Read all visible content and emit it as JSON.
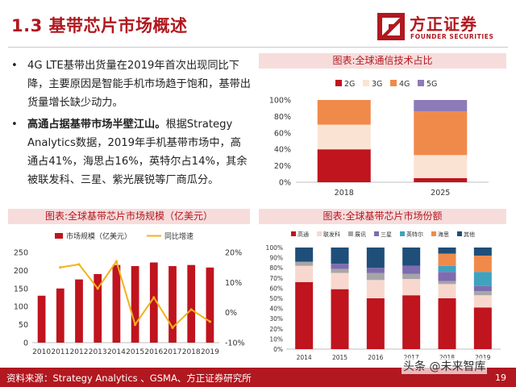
{
  "header": {
    "title": "1.3 基带芯片市场概述",
    "logo_cn": "方正证券",
    "logo_en": "FOUNDER SECURITIES",
    "colors": {
      "brand": "#b1181f",
      "panel_bg": "#f7dcdc"
    }
  },
  "bullets": [
    {
      "marker": "•",
      "text": "4G LTE基带出货量在2019年首次出现同比下降，主要原因是智能手机市场趋于饱和，基带出货量增长缺少动力。"
    },
    {
      "marker": "•",
      "highlight": "高通占据基带市场半壁江山。",
      "text": "根据Strategy Analytics数据，2019年手机基带市场中，高通占41%，海思占16%，英特尔占14%，其余被联发科、三星、紫光展锐等厂商瓜分。"
    }
  ],
  "panels": {
    "tech_share": "图表:全球通信技术占比",
    "market_size": "图表:全球基带芯片市场规模（亿美元）",
    "market_share": "图表:全球基带芯片市场份额"
  },
  "chart_data": [
    {
      "type": "bar",
      "stacked": true,
      "percent": true,
      "categories": [
        "2018",
        "2025"
      ],
      "series": [
        {
          "name": "2G",
          "color": "#c0141e",
          "values": [
            40,
            5
          ]
        },
        {
          "name": "3G",
          "color": "#fbe3d4",
          "values": [
            30,
            28
          ]
        },
        {
          "name": "4G",
          "color": "#f08a4b",
          "values": [
            30,
            53
          ]
        },
        {
          "name": "5G",
          "color": "#8d7bb8",
          "values": [
            0,
            14
          ]
        }
      ],
      "yticks": [
        "0%",
        "20%",
        "40%",
        "60%",
        "80%",
        "100%"
      ],
      "ylim": [
        0,
        100
      ],
      "legend": "top"
    },
    {
      "type": "bar+line",
      "categories": [
        "2010",
        "2011",
        "2012",
        "2013",
        "2014",
        "2015",
        "2016",
        "2017",
        "2018",
        "2019"
      ],
      "series": [
        {
          "name": "市场规模（亿美元）",
          "color": "#c0141e",
          "axis": "left",
          "values": [
            130,
            150,
            175,
            190,
            215,
            212,
            222,
            212,
            215,
            208
          ]
        },
        {
          "name": "同比增速",
          "color": "#f2b21b",
          "axis": "right",
          "values": [
            null,
            15,
            16,
            8,
            17,
            -4,
            5,
            -5,
            1,
            -3
          ]
        }
      ],
      "yticks_left": [
        "0",
        "50",
        "100",
        "150",
        "200",
        "250"
      ],
      "ylim_left": [
        0,
        250
      ],
      "yticks_right": [
        "-10%",
        "0%",
        "10%",
        "20%"
      ],
      "ylim_right": [
        -10,
        20
      ],
      "legend": "top"
    },
    {
      "type": "bar",
      "stacked": true,
      "percent": true,
      "categories": [
        "2014",
        "2015",
        "2016",
        "2017",
        "2018",
        "2019"
      ],
      "series": [
        {
          "name": "高通",
          "color": "#c0141e",
          "values": [
            66,
            59,
            50,
            53,
            50,
            41
          ]
        },
        {
          "name": "联发科",
          "color": "#f8d8ce",
          "values": [
            16,
            16,
            18,
            16,
            14,
            12
          ]
        },
        {
          "name": "展讯",
          "color": "#a6a6a6",
          "values": [
            4,
            4,
            7,
            5,
            3,
            4
          ]
        },
        {
          "name": "三星",
          "color": "#7f6bb0",
          "values": [
            0,
            5,
            5,
            8,
            9,
            5
          ]
        },
        {
          "name": "英特尔",
          "color": "#3fa2bf",
          "values": [
            0,
            0,
            0,
            0,
            6,
            14
          ]
        },
        {
          "name": "海思",
          "color": "#f08a4b",
          "values": [
            0,
            0,
            0,
            0,
            12,
            16
          ]
        },
        {
          "name": "其他",
          "color": "#1f4e79",
          "values": [
            14,
            16,
            20,
            18,
            6,
            8
          ]
        }
      ],
      "yticks": [
        "0%",
        "10%",
        "20%",
        "30%",
        "40%",
        "50%",
        "60%",
        "70%",
        "80%",
        "90%",
        "100%"
      ],
      "ylim": [
        0,
        100
      ],
      "legend": "top"
    }
  ],
  "footer": {
    "source": "资料来源：Strategy Analytics 、GSMA、方正证券研究所",
    "page": "19",
    "watermark": "头条 @未来智库"
  }
}
